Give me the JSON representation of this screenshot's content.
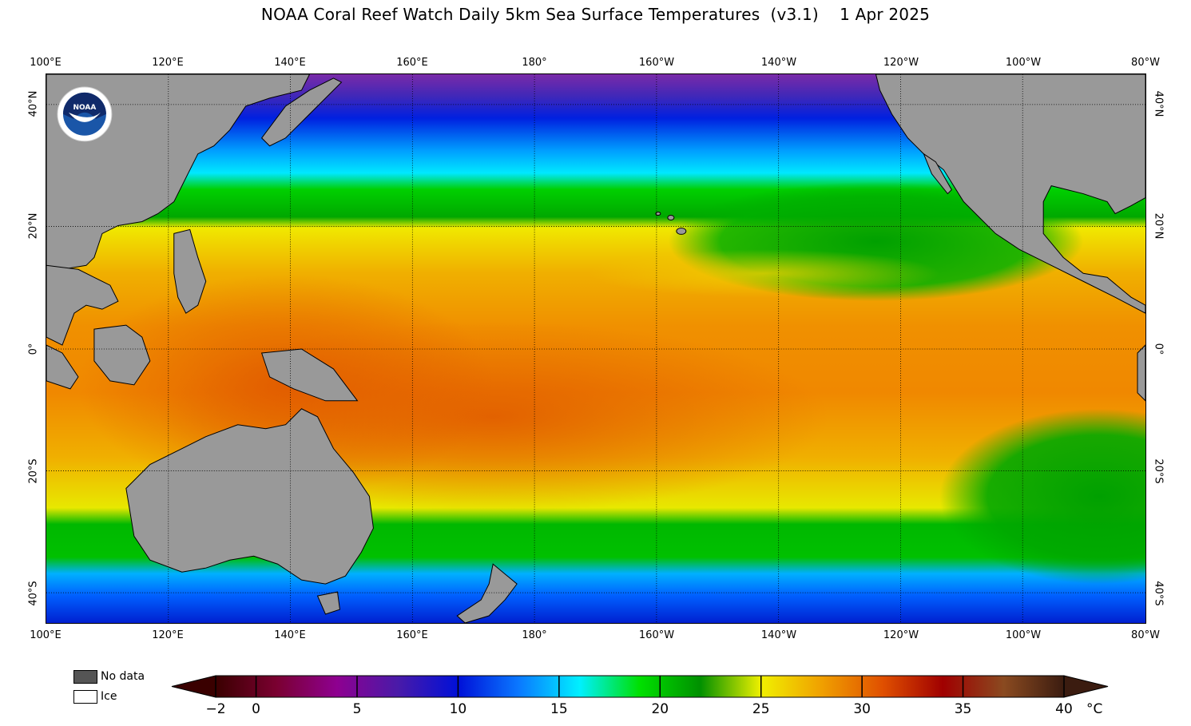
{
  "title": "NOAA Coral Reef Watch Daily 5km Sea Surface Temperatures  (v3.1)    1 Apr 2025",
  "longitude_labels": [
    "100°E",
    "120°E",
    "140°E",
    "160°E",
    "180°",
    "160°W",
    "140°W",
    "120°W",
    "100°W",
    "80°W"
  ],
  "latitude_labels": [
    "40°N",
    "20°N",
    "0°",
    "20°S",
    "40°S"
  ],
  "logo": {
    "text": "NOAA",
    "icon": "noaa-logo-icon"
  },
  "legend": {
    "no_data_label": "No data",
    "ice_label": "Ice",
    "no_data_color": "#555555",
    "ice_color": "#ffffff"
  },
  "colorbar": {
    "ticks": [
      "−2",
      "0",
      "5",
      "10",
      "15",
      "20",
      "25",
      "30",
      "35",
      "40"
    ],
    "tick_values": [
      -2,
      0,
      5,
      10,
      15,
      20,
      25,
      30,
      35,
      40
    ],
    "unit": "°C",
    "min": -2,
    "max": 40,
    "colors": [
      "#3a0000",
      "#7a0030",
      "#8e0090",
      "#4a1aa8",
      "#0010d8",
      "#0a78ff",
      "#00f0ff",
      "#00e000",
      "#009000",
      "#f0f000",
      "#f0a000",
      "#e05000",
      "#a00000",
      "#8a4a20",
      "#3b1c10"
    ]
  },
  "land_color": "#999999",
  "ocean_colors": {
    "tropics": "#f08000",
    "subtropics": "#f0e000",
    "temperate": "#00b000",
    "cool": "#00aaff",
    "cold": "#0030e0",
    "polar": "#7030b0"
  }
}
